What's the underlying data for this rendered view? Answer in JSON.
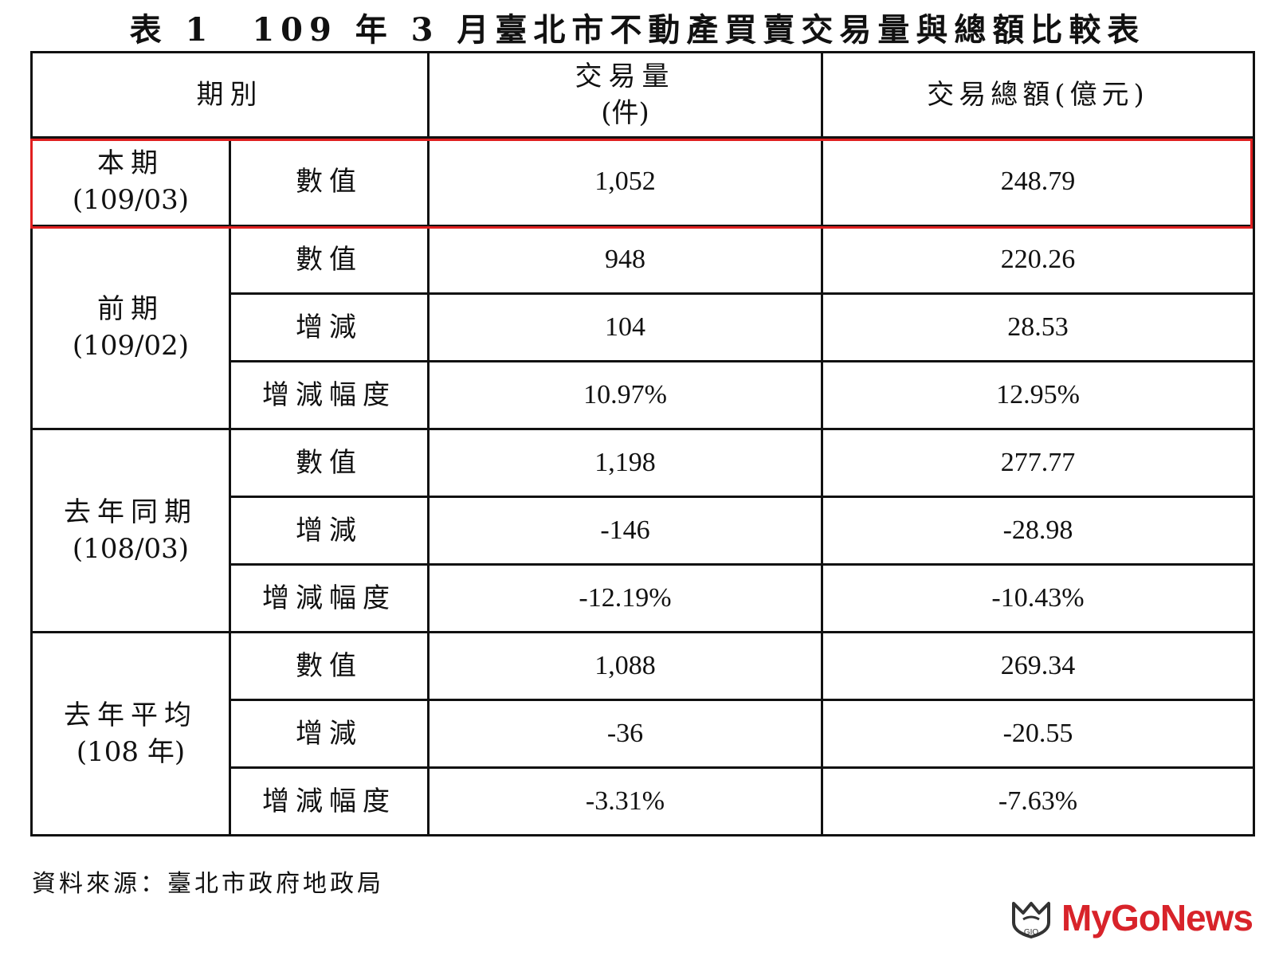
{
  "title": "表 1　109 年 3 月臺北市不動產買賣交易量與總額比較表",
  "header": {
    "period": "期別",
    "volume_line1": "交易量",
    "volume_line2": "(件)",
    "amount": "交易總額(億元)"
  },
  "groups": [
    {
      "name": "本期",
      "range": "(109/03)",
      "rows": [
        {
          "metric": "數值",
          "volume": "1,052",
          "amount": "248.79"
        }
      ]
    },
    {
      "name": "前期",
      "range": "(109/02)",
      "rows": [
        {
          "metric": "數值",
          "volume": "948",
          "amount": "220.26"
        },
        {
          "metric": "增減",
          "volume": "104",
          "amount": "28.53"
        },
        {
          "metric": "增減幅度",
          "volume": "10.97%",
          "amount": "12.95%"
        }
      ]
    },
    {
      "name": "去年同期",
      "range": "(108/03)",
      "rows": [
        {
          "metric": "數值",
          "volume": "1,198",
          "amount": "277.77"
        },
        {
          "metric": "增減",
          "volume": "-146",
          "amount": "-28.98"
        },
        {
          "metric": "增減幅度",
          "volume": "-12.19%",
          "amount": "-10.43%"
        }
      ]
    },
    {
      "name": "去年平均",
      "range": "(108 年)",
      "rows": [
        {
          "metric": "數值",
          "volume": "1,088",
          "amount": "269.34"
        },
        {
          "metric": "增減",
          "volume": "-36",
          "amount": "-20.55"
        },
        {
          "metric": "增減幅度",
          "volume": "-3.31%",
          "amount": "-7.63%"
        }
      ]
    }
  ],
  "source": "資料來源：臺北市政府地政局",
  "logo": {
    "text": "MyGoNews",
    "mark_text": "GIO",
    "color": "#d8232a"
  },
  "colors": {
    "highlight_border": "#e02020",
    "grid": "#111111"
  }
}
